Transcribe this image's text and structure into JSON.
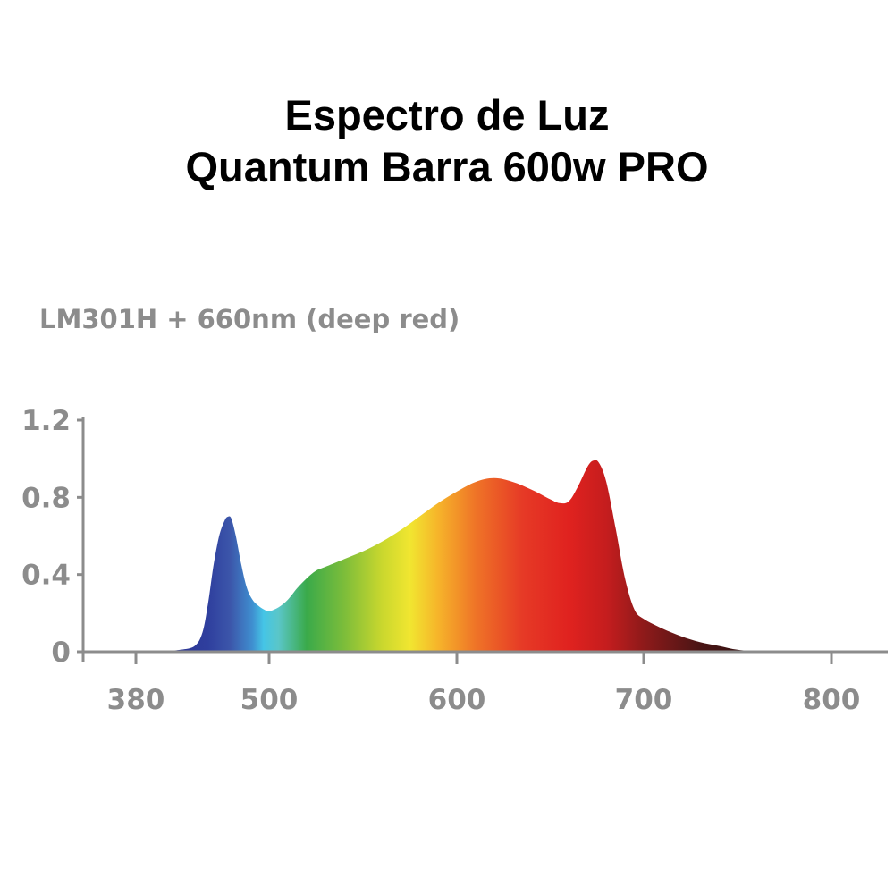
{
  "header": {
    "title_line1": "Espectro de Luz",
    "title_line2": "Quantum Barra 600w PRO"
  },
  "chart_data": {
    "type": "area",
    "subtitle": "LM301H + 660nm (deep red)",
    "xlabel": "",
    "ylabel": "",
    "xlim": [
      380,
      830
    ],
    "ylim": [
      0,
      1.2
    ],
    "x_ticks": [
      380,
      500,
      600,
      700,
      800
    ],
    "y_ticks": [
      0,
      0.4,
      0.8,
      1.2
    ],
    "y_tick_labels": [
      "0",
      "0.4",
      "0.8",
      "1.2"
    ],
    "grid": false,
    "axis_color": "#8c8c8c",
    "series": [
      {
        "x": [
          400,
          420,
          433,
          440,
          445,
          450,
          455,
          460,
          463,
          466,
          470,
          475,
          480,
          485,
          490,
          495,
          500,
          505,
          510,
          515,
          520,
          525,
          530,
          540,
          550,
          560,
          570,
          580,
          590,
          600,
          610,
          620,
          630,
          640,
          650,
          655,
          660,
          665,
          670,
          673,
          676,
          680,
          685,
          690,
          695,
          700,
          710,
          720,
          730,
          740,
          750,
          760,
          765
        ],
        "y": [
          0.0,
          0.01,
          0.03,
          0.1,
          0.25,
          0.45,
          0.6,
          0.68,
          0.7,
          0.69,
          0.6,
          0.45,
          0.33,
          0.27,
          0.24,
          0.22,
          0.21,
          0.23,
          0.27,
          0.33,
          0.38,
          0.42,
          0.44,
          0.48,
          0.52,
          0.57,
          0.63,
          0.7,
          0.77,
          0.83,
          0.88,
          0.9,
          0.88,
          0.84,
          0.79,
          0.77,
          0.78,
          0.86,
          0.96,
          0.99,
          0.98,
          0.88,
          0.64,
          0.38,
          0.22,
          0.17,
          0.12,
          0.08,
          0.05,
          0.03,
          0.01,
          0.003,
          0.0
        ]
      }
    ],
    "spectrum_colors": [
      {
        "nm": 400,
        "color": "#2b2f8e"
      },
      {
        "nm": 445,
        "color": "#2f3f9e"
      },
      {
        "nm": 465,
        "color": "#3c56aa"
      },
      {
        "nm": 485,
        "color": "#3f8fd0"
      },
      {
        "nm": 495,
        "color": "#45c5e6"
      },
      {
        "nm": 505,
        "color": "#5ac6c8"
      },
      {
        "nm": 520,
        "color": "#3aaa4a"
      },
      {
        "nm": 540,
        "color": "#7cbd3a"
      },
      {
        "nm": 560,
        "color": "#c9d72e"
      },
      {
        "nm": 575,
        "color": "#f1e630"
      },
      {
        "nm": 590,
        "color": "#f6b42a"
      },
      {
        "nm": 610,
        "color": "#ef7427"
      },
      {
        "nm": 635,
        "color": "#e63a26"
      },
      {
        "nm": 660,
        "color": "#e0221f"
      },
      {
        "nm": 680,
        "color": "#c51d1e"
      },
      {
        "nm": 700,
        "color": "#8e1a1a"
      },
      {
        "nm": 730,
        "color": "#4a1515"
      },
      {
        "nm": 765,
        "color": "#2b1010"
      }
    ]
  }
}
